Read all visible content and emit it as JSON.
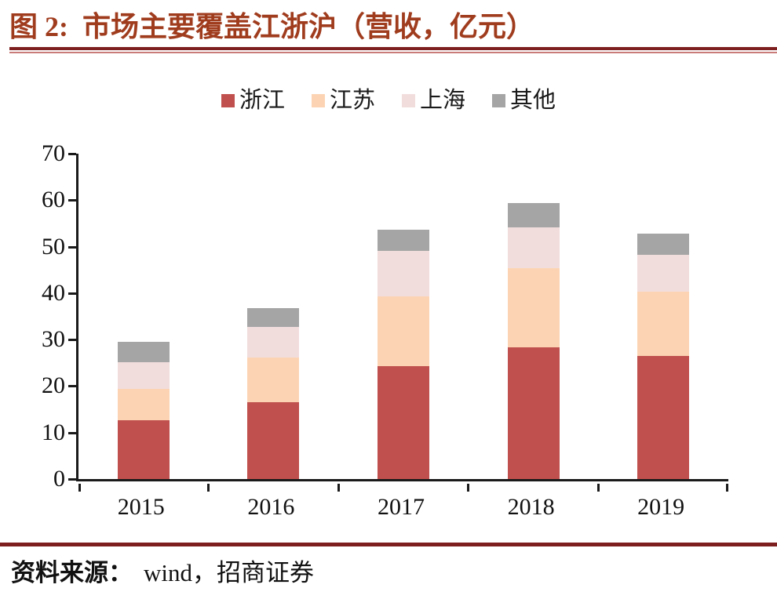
{
  "header": {
    "figure_label": "图 2:",
    "title": "市场主要覆盖江浙沪（营收，亿元）"
  },
  "footer": {
    "source_label": "资料来源：",
    "source_text": "wind，招商证券"
  },
  "colors": {
    "title_text": "#a03c1e",
    "rule_dark_red": "#7e1f1f",
    "axis_black": "#1a1a1a"
  },
  "chart_data": {
    "type": "bar",
    "stacked": true,
    "title": "图 2: 市场主要覆盖江浙沪（营收，亿元）",
    "categories": [
      "2015",
      "2016",
      "2017",
      "2018",
      "2019"
    ],
    "series": [
      {
        "name": "浙江",
        "color": "#c0504d",
        "values": [
          12.7,
          16.5,
          24.3,
          28.4,
          26.5
        ]
      },
      {
        "name": "江苏",
        "color": "#fcd4b4",
        "values": [
          6.7,
          9.7,
          15.0,
          16.9,
          13.8
        ]
      },
      {
        "name": "上海",
        "color": "#f2dddd",
        "values": [
          5.8,
          6.5,
          9.8,
          8.9,
          8.0
        ]
      },
      {
        "name": "其他",
        "color": "#a5a5a5",
        "values": [
          4.3,
          4.1,
          4.5,
          5.2,
          4.5
        ]
      }
    ],
    "totals": [
      29.5,
      36.8,
      53.6,
      59.4,
      52.8
    ],
    "xlabel": "",
    "ylabel": "",
    "ylim": [
      0,
      70
    ],
    "ytick_step": 10,
    "yticks": [
      0,
      10,
      20,
      30,
      40,
      50,
      60,
      70
    ],
    "legend_position": "top-center",
    "grid": false
  }
}
